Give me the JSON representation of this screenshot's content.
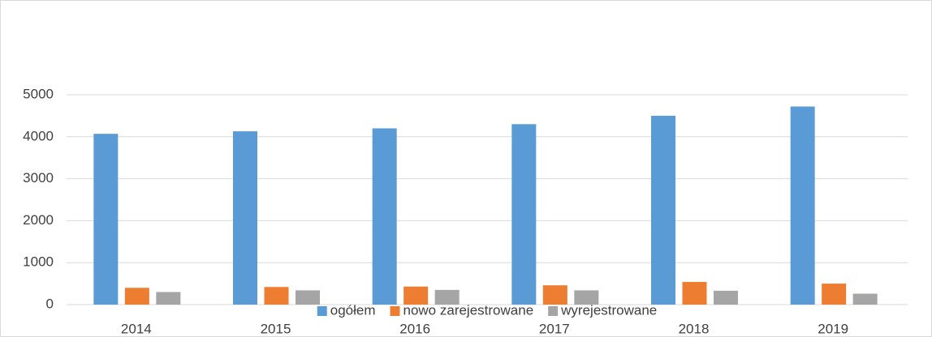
{
  "chart_data": {
    "type": "bar",
    "categories": [
      "2014",
      "2015",
      "2016",
      "2017",
      "2018",
      "2019"
    ],
    "series": [
      {
        "name": "ogółem",
        "color": "#5b9bd5",
        "values": [
          4070,
          4130,
          4200,
          4300,
          4500,
          4720
        ]
      },
      {
        "name": "nowo zarejestrowane",
        "color": "#ed7d31",
        "values": [
          400,
          420,
          430,
          460,
          540,
          500
        ]
      },
      {
        "name": "wyrejestrowane",
        "color": "#a5a5a5",
        "values": [
          300,
          340,
          350,
          340,
          330,
          260
        ]
      }
    ],
    "ylim": [
      0,
      5000
    ],
    "yticks": [
      0,
      1000,
      2000,
      3000,
      4000,
      5000
    ],
    "grid": true,
    "legend": "bottom"
  }
}
